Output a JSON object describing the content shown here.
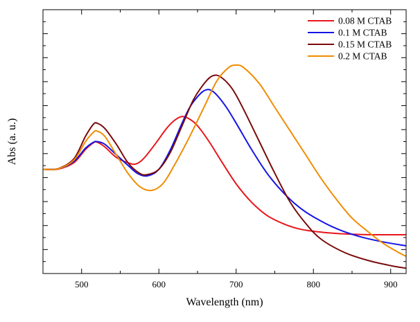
{
  "chart_data": {
    "type": "line",
    "title": "",
    "xlabel": "Wavelength (nm)",
    "ylabel": "Abs (a. u.)",
    "xlim": [
      450,
      920
    ],
    "ylim": [
      0,
      1
    ],
    "xticks": [
      500,
      600,
      700,
      800,
      900
    ],
    "y_tick_labels_shown": false,
    "grid": false,
    "legend_position": "top-right",
    "series": [
      {
        "name": "0.08 M CTAB",
        "color": "#e8141a",
        "points": [
          [
            450,
            0.395
          ],
          [
            470,
            0.396
          ],
          [
            490,
            0.42
          ],
          [
            505,
            0.47
          ],
          [
            515,
            0.495
          ],
          [
            520,
            0.498
          ],
          [
            530,
            0.48
          ],
          [
            545,
            0.44
          ],
          [
            560,
            0.42
          ],
          [
            570,
            0.415
          ],
          [
            580,
            0.435
          ],
          [
            595,
            0.49
          ],
          [
            610,
            0.55
          ],
          [
            620,
            0.58
          ],
          [
            630,
            0.595
          ],
          [
            640,
            0.585
          ],
          [
            650,
            0.56
          ],
          [
            665,
            0.5
          ],
          [
            680,
            0.43
          ],
          [
            700,
            0.34
          ],
          [
            720,
            0.27
          ],
          [
            740,
            0.22
          ],
          [
            760,
            0.19
          ],
          [
            780,
            0.17
          ],
          [
            800,
            0.16
          ],
          [
            830,
            0.152
          ],
          [
            860,
            0.148
          ],
          [
            890,
            0.147
          ],
          [
            920,
            0.147
          ]
        ]
      },
      {
        "name": "0.1 M CTAB",
        "color": "#1414e6",
        "points": [
          [
            450,
            0.395
          ],
          [
            470,
            0.397
          ],
          [
            490,
            0.425
          ],
          [
            505,
            0.475
          ],
          [
            515,
            0.497
          ],
          [
            520,
            0.5
          ],
          [
            530,
            0.49
          ],
          [
            545,
            0.45
          ],
          [
            560,
            0.41
          ],
          [
            572,
            0.38
          ],
          [
            585,
            0.37
          ],
          [
            600,
            0.395
          ],
          [
            615,
            0.47
          ],
          [
            630,
            0.57
          ],
          [
            640,
            0.63
          ],
          [
            650,
            0.67
          ],
          [
            660,
            0.695
          ],
          [
            670,
            0.69
          ],
          [
            685,
            0.64
          ],
          [
            700,
            0.57
          ],
          [
            720,
            0.47
          ],
          [
            740,
            0.38
          ],
          [
            760,
            0.31
          ],
          [
            780,
            0.255
          ],
          [
            800,
            0.215
          ],
          [
            830,
            0.17
          ],
          [
            860,
            0.14
          ],
          [
            890,
            0.12
          ],
          [
            920,
            0.105
          ]
        ]
      },
      {
        "name": "0.15 M CTAB",
        "color": "#7a0a0a",
        "points": [
          [
            450,
            0.395
          ],
          [
            470,
            0.398
          ],
          [
            490,
            0.435
          ],
          [
            505,
            0.52
          ],
          [
            515,
            0.565
          ],
          [
            520,
            0.57
          ],
          [
            530,
            0.55
          ],
          [
            545,
            0.49
          ],
          [
            560,
            0.42
          ],
          [
            575,
            0.38
          ],
          [
            585,
            0.375
          ],
          [
            600,
            0.395
          ],
          [
            615,
            0.46
          ],
          [
            630,
            0.56
          ],
          [
            645,
            0.66
          ],
          [
            660,
            0.725
          ],
          [
            670,
            0.75
          ],
          [
            680,
            0.745
          ],
          [
            695,
            0.7
          ],
          [
            710,
            0.62
          ],
          [
            730,
            0.5
          ],
          [
            750,
            0.38
          ],
          [
            770,
            0.27
          ],
          [
            790,
            0.19
          ],
          [
            810,
            0.13
          ],
          [
            840,
            0.08
          ],
          [
            870,
            0.05
          ],
          [
            900,
            0.03
          ],
          [
            920,
            0.02
          ]
        ]
      },
      {
        "name": "0.2 M CTAB",
        "color": "#f08c00",
        "points": [
          [
            450,
            0.395
          ],
          [
            470,
            0.397
          ],
          [
            490,
            0.43
          ],
          [
            505,
            0.5
          ],
          [
            515,
            0.535
          ],
          [
            520,
            0.54
          ],
          [
            530,
            0.52
          ],
          [
            545,
            0.45
          ],
          [
            560,
            0.38
          ],
          [
            575,
            0.33
          ],
          [
            590,
            0.315
          ],
          [
            605,
            0.34
          ],
          [
            620,
            0.41
          ],
          [
            640,
            0.52
          ],
          [
            660,
            0.64
          ],
          [
            675,
            0.73
          ],
          [
            690,
            0.78
          ],
          [
            700,
            0.79
          ],
          [
            710,
            0.78
          ],
          [
            730,
            0.72
          ],
          [
            750,
            0.63
          ],
          [
            770,
            0.54
          ],
          [
            790,
            0.45
          ],
          [
            810,
            0.36
          ],
          [
            830,
            0.28
          ],
          [
            850,
            0.21
          ],
          [
            870,
            0.16
          ],
          [
            890,
            0.115
          ],
          [
            910,
            0.08
          ],
          [
            920,
            0.065
          ]
        ]
      }
    ]
  }
}
